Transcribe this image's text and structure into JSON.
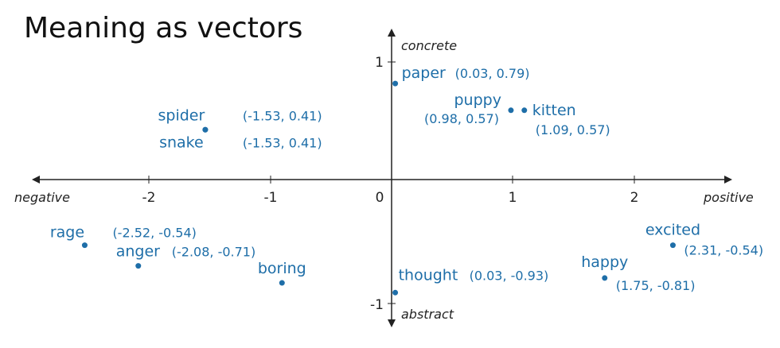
{
  "chart_data": {
    "type": "scatter",
    "title": "Meaning as vectors",
    "x_axis": {
      "negative_label": "negative",
      "positive_label": "positive",
      "ticks": [
        "-2",
        "-1",
        "0",
        "1",
        "2"
      ]
    },
    "y_axis": {
      "positive_label": "concrete",
      "negative_label": "abstract",
      "ticks": [
        "1",
        "-1"
      ]
    },
    "grid": false,
    "points": [
      {
        "word": "paper",
        "coords": "(0.03, 0.79)",
        "x": 0.03,
        "y": 0.79
      },
      {
        "word": "puppy",
        "coords": "(0.98, 0.57)",
        "x": 0.98,
        "y": 0.57
      },
      {
        "word": "kitten",
        "coords": "(1.09, 0.57)",
        "x": 1.09,
        "y": 0.57
      },
      {
        "word": "spider",
        "coords": "(-1.53, 0.41)",
        "x": -1.53,
        "y": 0.41
      },
      {
        "word": "snake",
        "coords": "(-1.53, 0.41)",
        "x": -1.53,
        "y": 0.41
      },
      {
        "word": "rage",
        "coords": "(-2.52, -0.54)",
        "x": -2.52,
        "y": -0.54
      },
      {
        "word": "anger",
        "coords": "(-2.08, -0.71)",
        "x": -2.08,
        "y": -0.71
      },
      {
        "word": "boring",
        "coords": "",
        "x": -0.9,
        "y": -0.85
      },
      {
        "word": "thought",
        "coords": "(0.03, -0.93)",
        "x": 0.03,
        "y": -0.93
      },
      {
        "word": "happy",
        "coords": "(1.75, -0.81)",
        "x": 1.75,
        "y": -0.81
      },
      {
        "word": "excited",
        "coords": "(2.31, -0.54)",
        "x": 2.31,
        "y": -0.54
      }
    ]
  }
}
